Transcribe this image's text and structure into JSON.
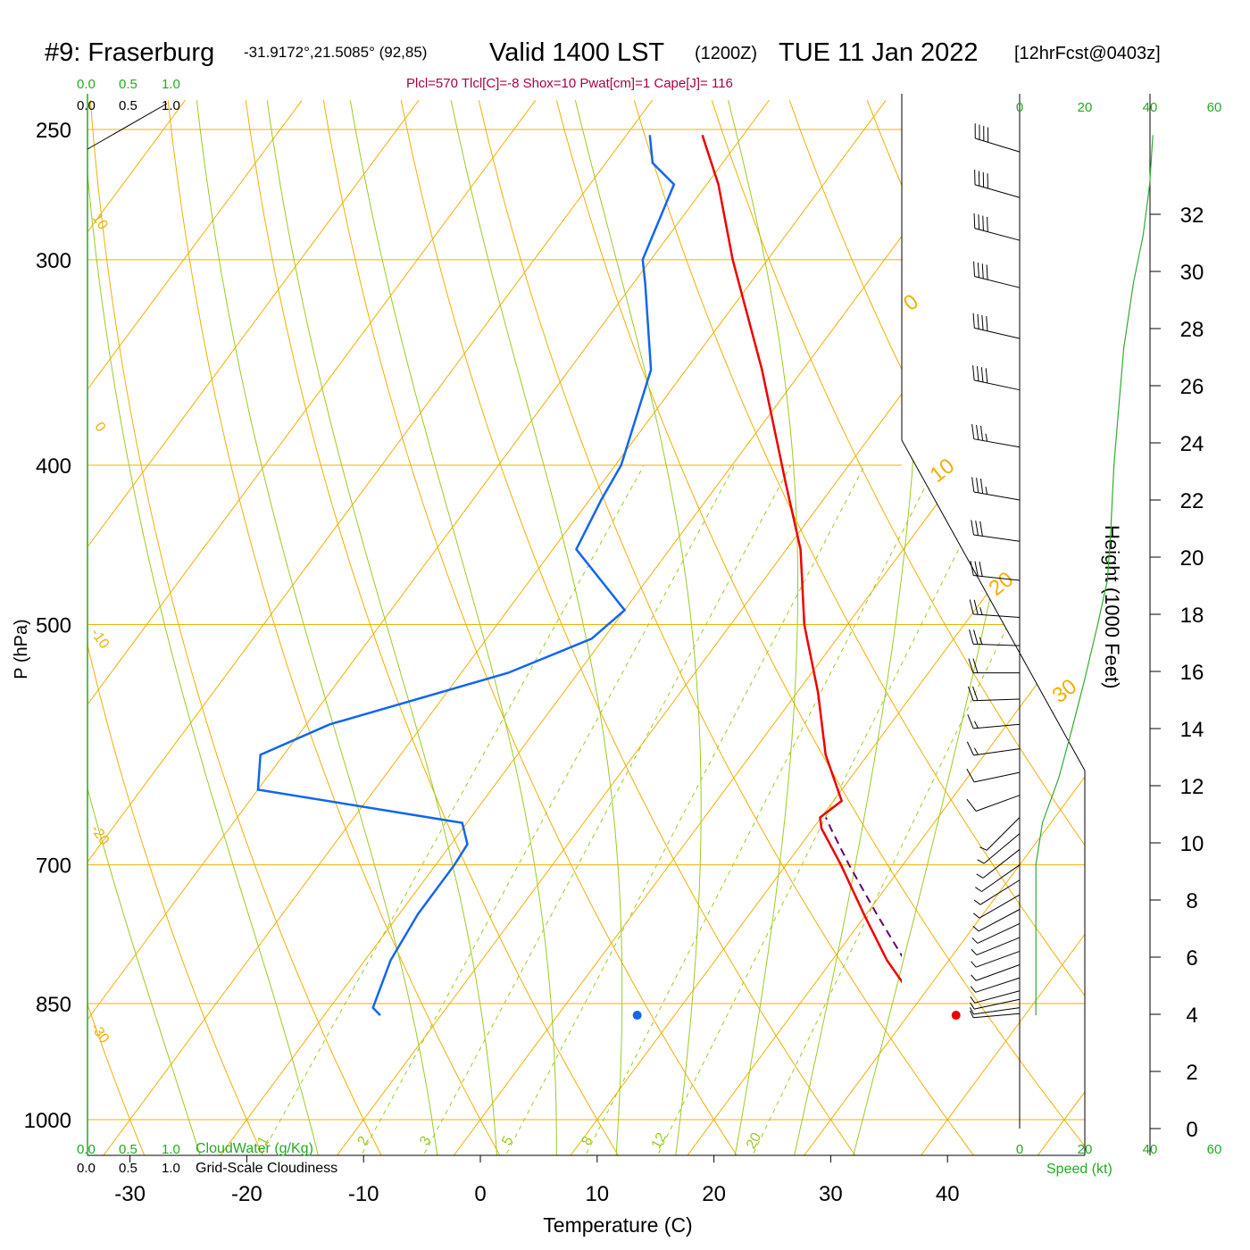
{
  "header": {
    "station": "#9: Fraserburg",
    "coords": "-31.9172°,21.5085° (92,85)",
    "valid": "Valid 1400 LST",
    "zulu": "(1200Z)",
    "date": "TUE 11 Jan 2022",
    "forecast": "[12hrFcst@0403z]",
    "indices": "Plcl=570 Tlcl[C]=-8 Shox=10 Pwat[cm]=1 Cape[J]= 116"
  },
  "cloud_scale": {
    "water_ticks": [
      "0.0",
      "0.5",
      "1.0"
    ],
    "cloudiness_ticks": [
      "0.0",
      "0.5",
      "1.0"
    ],
    "water_label": "CloudWater (g/Kg)",
    "cloudiness_label": "Grid-Scale Cloudiness"
  },
  "speed_panel": {
    "ticks": [
      "0",
      "20",
      "40",
      "60"
    ],
    "label": "Speed (kt)"
  },
  "height_axis": {
    "label": "Height (1000 Feet)",
    "ticks": [
      "0",
      "2",
      "4",
      "6",
      "8",
      "10",
      "12",
      "14",
      "16",
      "18",
      "20",
      "22",
      "24",
      "26",
      "28",
      "30",
      "32"
    ]
  },
  "colors": {
    "temperature": "#ee0000",
    "dewpoint": "#1166ee",
    "parcel": "#660066",
    "isotherm": "#f0b000",
    "dry_adiabat": "#f0b000",
    "moist_adiabat": "#99cc22",
    "mixing_ratio": "#99cc22",
    "frame_green": "#22aa22"
  },
  "chart_data": {
    "type": "skew-t",
    "xlabel": "Temperature (C)",
    "ylabel": "P (hPa)",
    "xlim": [
      -34,
      36
    ],
    "pressure_ticks": [
      250,
      300,
      400,
      500,
      700,
      850,
      1000
    ],
    "temperature_ticks": [
      -30,
      -20,
      -10,
      0,
      10,
      20,
      30,
      40
    ],
    "temperature_profile": [
      {
        "p": 864,
        "t": 32.4
      },
      {
        "p": 855,
        "t": 31.1
      },
      {
        "p": 840,
        "t": 29.0
      },
      {
        "p": 800,
        "t": 24.7
      },
      {
        "p": 750,
        "t": 19.8
      },
      {
        "p": 700,
        "t": 14.7
      },
      {
        "p": 665,
        "t": 10.7
      },
      {
        "p": 655,
        "t": 9.9
      },
      {
        "p": 640,
        "t": 10.7
      },
      {
        "p": 600,
        "t": 6.4
      },
      {
        "p": 550,
        "t": 1.8
      },
      {
        "p": 500,
        "t": -3.7
      },
      {
        "p": 450,
        "t": -8.8
      },
      {
        "p": 410,
        "t": -14.3
      },
      {
        "p": 350,
        "t": -23.5
      },
      {
        "p": 300,
        "t": -33.0
      },
      {
        "p": 270,
        "t": -39.0
      },
      {
        "p": 252,
        "t": -43.5
      }
    ],
    "dewpoint_profile": [
      {
        "p": 864,
        "t": -15.2
      },
      {
        "p": 855,
        "t": -16.3
      },
      {
        "p": 800,
        "t": -17.8
      },
      {
        "p": 750,
        "t": -18.4
      },
      {
        "p": 700,
        "t": -18.4
      },
      {
        "p": 680,
        "t": -18.6
      },
      {
        "p": 660,
        "t": -20.4
      },
      {
        "p": 630,
        "t": -40.0
      },
      {
        "p": 600,
        "t": -42.0
      },
      {
        "p": 575,
        "t": -38.0
      },
      {
        "p": 535,
        "t": -26.0
      },
      {
        "p": 510,
        "t": -21.0
      },
      {
        "p": 490,
        "t": -20.0
      },
      {
        "p": 450,
        "t": -28.0
      },
      {
        "p": 420,
        "t": -29.0
      },
      {
        "p": 400,
        "t": -29.5
      },
      {
        "p": 350,
        "t": -33.0
      },
      {
        "p": 310,
        "t": -39.0
      },
      {
        "p": 300,
        "t": -40.7
      },
      {
        "p": 270,
        "t": -42.8
      },
      {
        "p": 262,
        "t": -46.0
      },
      {
        "p": 252,
        "t": -48.0
      }
    ],
    "parcel_profile": [
      {
        "p": 864,
        "t": 32.9
      },
      {
        "p": 850,
        "t": 31.2
      },
      {
        "p": 800,
        "t": 26.2
      },
      {
        "p": 750,
        "t": 20.9
      },
      {
        "p": 700,
        "t": 15.4
      },
      {
        "p": 665,
        "t": 11.5
      },
      {
        "p": 655,
        "t": 10.4
      }
    ],
    "surface_temperature": {
      "p": 864,
      "t": 34.1
    },
    "surface_dewpoint": {
      "p": 864,
      "t": 6.8
    },
    "isotherm_labels": [
      {
        "t": 10,
        "text": "10"
      },
      {
        "t": 0,
        "text": "0"
      },
      {
        "t": -10,
        "text": "-10"
      },
      {
        "t": -20,
        "text": "-20"
      },
      {
        "t": -30,
        "text": "-30"
      },
      {
        "t": 0,
        "text": "0",
        "side": "right"
      },
      {
        "t": 10,
        "text": "10",
        "side": "right"
      },
      {
        "t": 20,
        "text": "20",
        "side": "right"
      },
      {
        "t": 30,
        "text": "30",
        "side": "right"
      }
    ],
    "mixing_ratio_labels": [
      "1",
      "2",
      "3",
      "5",
      "8",
      "12",
      "20"
    ],
    "wind_barbs": [
      {
        "p": 862,
        "dir": 265,
        "spd": 5
      },
      {
        "p": 855,
        "dir": 262,
        "spd": 5
      },
      {
        "p": 845,
        "dir": 258,
        "spd": 5
      },
      {
        "p": 835,
        "dir": 255,
        "spd": 5
      },
      {
        "p": 820,
        "dir": 252,
        "spd": 5
      },
      {
        "p": 805,
        "dir": 250,
        "spd": 5
      },
      {
        "p": 790,
        "dir": 250,
        "spd": 5
      },
      {
        "p": 775,
        "dir": 248,
        "spd": 5
      },
      {
        "p": 760,
        "dir": 245,
        "spd": 5
      },
      {
        "p": 745,
        "dir": 242,
        "spd": 5
      },
      {
        "p": 730,
        "dir": 240,
        "spd": 5
      },
      {
        "p": 715,
        "dir": 238,
        "spd": 5
      },
      {
        "p": 700,
        "dir": 235,
        "spd": 5
      },
      {
        "p": 685,
        "dir": 232,
        "spd": 5
      },
      {
        "p": 670,
        "dir": 230,
        "spd": 5
      },
      {
        "p": 655,
        "dir": 225,
        "spd": 5
      },
      {
        "p": 635,
        "dir": 250,
        "spd": 10
      },
      {
        "p": 615,
        "dir": 258,
        "spd": 10
      },
      {
        "p": 595,
        "dir": 262,
        "spd": 15
      },
      {
        "p": 575,
        "dir": 265,
        "spd": 15
      },
      {
        "p": 555,
        "dir": 268,
        "spd": 20
      },
      {
        "p": 535,
        "dir": 270,
        "spd": 20
      },
      {
        "p": 515,
        "dir": 272,
        "spd": 25
      },
      {
        "p": 495,
        "dir": 274,
        "spd": 25
      },
      {
        "p": 470,
        "dir": 276,
        "spd": 30
      },
      {
        "p": 445,
        "dir": 278,
        "spd": 30
      },
      {
        "p": 420,
        "dir": 280,
        "spd": 35
      },
      {
        "p": 390,
        "dir": 280,
        "spd": 35
      },
      {
        "p": 360,
        "dir": 282,
        "spd": 40
      },
      {
        "p": 335,
        "dir": 283,
        "spd": 40
      },
      {
        "p": 312,
        "dir": 284,
        "spd": 40
      },
      {
        "p": 292,
        "dir": 285,
        "spd": 40
      },
      {
        "p": 275,
        "dir": 286,
        "spd": 40
      },
      {
        "p": 258,
        "dir": 287,
        "spd": 40
      }
    ],
    "wind_speed_profile": [
      {
        "p": 864,
        "spd": 5
      },
      {
        "p": 800,
        "spd": 5
      },
      {
        "p": 700,
        "spd": 5
      },
      {
        "p": 660,
        "spd": 7
      },
      {
        "p": 620,
        "spd": 12
      },
      {
        "p": 580,
        "spd": 16
      },
      {
        "p": 540,
        "spd": 20
      },
      {
        "p": 500,
        "spd": 24
      },
      {
        "p": 470,
        "spd": 27
      },
      {
        "p": 440,
        "spd": 28
      },
      {
        "p": 400,
        "spd": 29
      },
      {
        "p": 340,
        "spd": 32
      },
      {
        "p": 310,
        "spd": 35
      },
      {
        "p": 290,
        "spd": 38
      },
      {
        "p": 270,
        "spd": 40
      },
      {
        "p": 252,
        "spd": 41
      }
    ]
  }
}
